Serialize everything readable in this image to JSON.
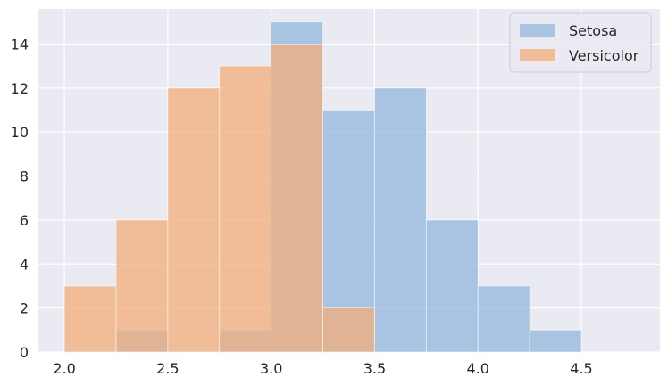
{
  "chart_data": {
    "type": "bar",
    "subtype": "overlaid-histogram",
    "title": "",
    "xlabel": "",
    "ylabel": "",
    "bin_edges": [
      2.0,
      2.25,
      2.5,
      2.75,
      3.0,
      3.25,
      3.5,
      3.75,
      4.0,
      4.25,
      4.5
    ],
    "series": [
      {
        "name": "Setosa",
        "color": "#92b7dc",
        "counts": [
          0,
          1,
          0,
          1,
          15,
          11,
          12,
          6,
          3,
          1
        ]
      },
      {
        "name": "Versicolor",
        "color": "#f3ad79",
        "counts": [
          3,
          6,
          12,
          13,
          14,
          2,
          0,
          0,
          0,
          0
        ]
      }
    ],
    "xlim": [
      1.87,
      4.88
    ],
    "ylim": [
      0,
      15.6
    ],
    "xticks": [
      "2.0",
      "2.5",
      "3.0",
      "3.5",
      "4.0",
      "4.5"
    ],
    "yticks": [
      "0",
      "2",
      "4",
      "6",
      "8",
      "10",
      "12",
      "14"
    ],
    "grid": true,
    "legend_position": "top-right",
    "background_color": "#eaeaf2"
  }
}
